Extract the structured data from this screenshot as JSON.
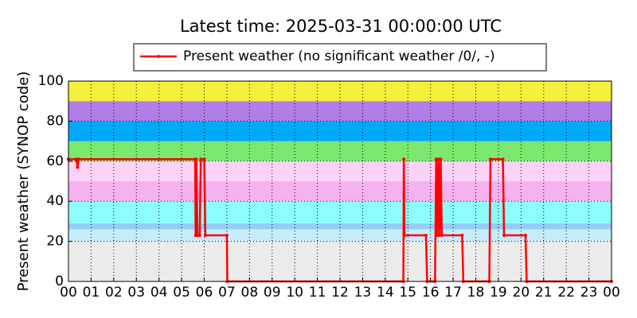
{
  "chart_data": {
    "type": "line",
    "title": "Latest time: 2025-03-31 00:00:00 UTC",
    "ylabel": "Present weather (SYNOP code)",
    "xlim": [
      0,
      24
    ],
    "ylim": [
      0,
      100
    ],
    "yticks": [
      0,
      20,
      40,
      60,
      80,
      100
    ],
    "xticks": [
      {
        "value": 0,
        "label": "00"
      },
      {
        "value": 1,
        "label": "01"
      },
      {
        "value": 2,
        "label": "02"
      },
      {
        "value": 3,
        "label": "03"
      },
      {
        "value": 4,
        "label": "04"
      },
      {
        "value": 5,
        "label": "05"
      },
      {
        "value": 6,
        "label": "06"
      },
      {
        "value": 7,
        "label": "07"
      },
      {
        "value": 8,
        "label": "08"
      },
      {
        "value": 9,
        "label": "09"
      },
      {
        "value": 10,
        "label": "10"
      },
      {
        "value": 11,
        "label": "11"
      },
      {
        "value": 12,
        "label": "12"
      },
      {
        "value": 13,
        "label": "13"
      },
      {
        "value": 14,
        "label": "14"
      },
      {
        "value": 15,
        "label": "15"
      },
      {
        "value": 16,
        "label": "16"
      },
      {
        "value": 17,
        "label": "17"
      },
      {
        "value": 18,
        "label": "18"
      },
      {
        "value": 19,
        "label": "19"
      },
      {
        "value": 20,
        "label": "20"
      },
      {
        "value": 21,
        "label": "21"
      },
      {
        "value": 22,
        "label": "22"
      },
      {
        "value": 23,
        "label": "23"
      },
      {
        "value": 24,
        "label": "00"
      }
    ],
    "grid": true,
    "legend": "top",
    "bands": [
      {
        "from": 0,
        "to": 20,
        "color": "#ebebeb"
      },
      {
        "from": 20,
        "to": 26,
        "color": "#c6ecfc"
      },
      {
        "from": 26,
        "to": 29,
        "color": "#96ccf6"
      },
      {
        "from": 29,
        "to": 40,
        "color": "#8cfcfc"
      },
      {
        "from": 40,
        "to": 50,
        "color": "#f4b2ee"
      },
      {
        "from": 50,
        "to": 60,
        "color": "#fcd2f8"
      },
      {
        "from": 60,
        "to": 70,
        "color": "#7ce870"
      },
      {
        "from": 70,
        "to": 80,
        "color": "#00aaf8"
      },
      {
        "from": 80,
        "to": 90,
        "color": "#b07ee8"
      },
      {
        "from": 90,
        "to": 100,
        "color": "#f4f03c"
      }
    ],
    "x": [
      0,
      0.35,
      0.4,
      0.45,
      5.6,
      5.62,
      5.65,
      5.7,
      5.75,
      5.8,
      5.85,
      6.0,
      6.05,
      7.0,
      7.02,
      14.8,
      14.82,
      14.85,
      15.8,
      15.85,
      16.2,
      16.25,
      16.3,
      16.35,
      16.4,
      16.45,
      16.5,
      17.4,
      17.45,
      18.6,
      18.65,
      19.2,
      19.25,
      20.2,
      20.25,
      24
    ],
    "series": [
      {
        "name": "Present weather (no significant weather /0/, -)",
        "color": "#ff0000",
        "values": [
          61,
          61,
          57,
          61,
          61,
          23,
          61,
          23,
          23,
          23,
          61,
          61,
          23,
          23,
          0,
          0,
          61,
          23,
          23,
          0,
          0,
          61,
          23,
          61,
          23,
          61,
          23,
          23,
          0,
          0,
          61,
          61,
          23,
          23,
          0,
          0
        ]
      }
    ]
  }
}
